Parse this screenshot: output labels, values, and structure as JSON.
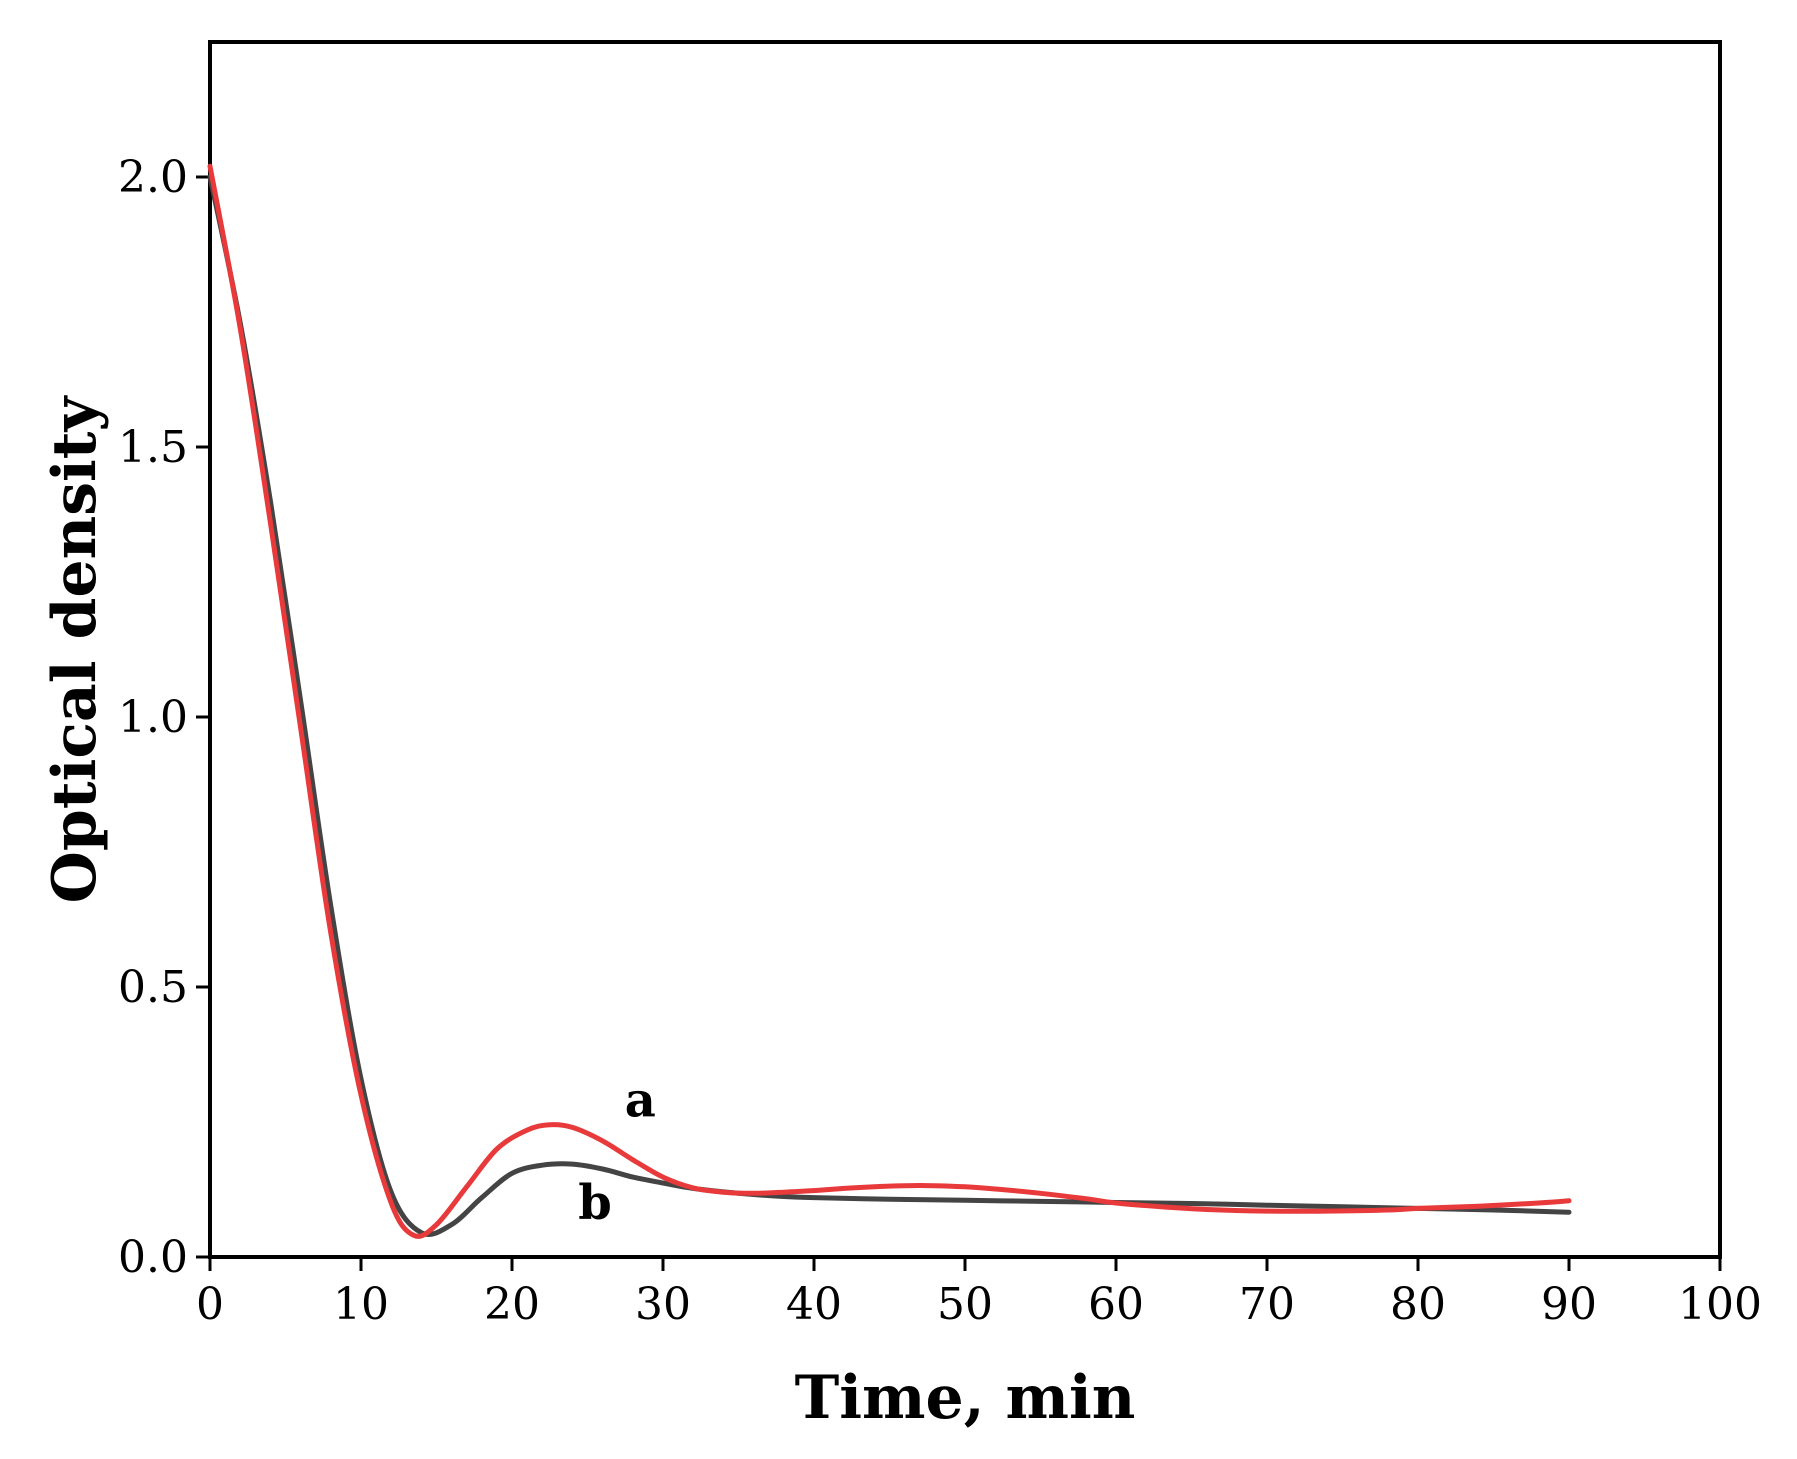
{
  "chart_data": {
    "type": "line",
    "title": "",
    "xlabel": "Time, min",
    "ylabel": "Optical density",
    "xlim": [
      0,
      100
    ],
    "ylim": [
      0,
      2.25
    ],
    "xticks": [
      0,
      10,
      20,
      30,
      40,
      50,
      60,
      70,
      80,
      90,
      100
    ],
    "xtick_labels": [
      "0",
      "10",
      "20",
      "30",
      "40",
      "50",
      "60",
      "70",
      "80",
      "90",
      "100"
    ],
    "yticks": [
      0,
      0.5,
      1.0,
      1.5,
      2.0
    ],
    "ytick_labels": [
      "0.0",
      "0.5",
      "1.0",
      "1.5",
      "2.0"
    ],
    "grid": false,
    "series": [
      {
        "name": "a",
        "color": "#e8393b",
        "x": [
          0,
          2,
          4,
          6,
          8,
          10,
          12,
          13.5,
          15,
          17,
          19,
          21,
          22.5,
          24,
          26,
          28,
          30,
          32,
          34,
          36,
          38,
          40,
          42,
          44,
          46,
          48,
          50,
          52,
          55,
          58,
          60,
          63,
          66,
          70,
          74,
          78,
          80,
          84,
          88,
          90
        ],
        "y": [
          2.02,
          1.72,
          1.36,
          0.98,
          0.6,
          0.3,
          0.1,
          0.04,
          0.06,
          0.13,
          0.2,
          0.235,
          0.245,
          0.24,
          0.215,
          0.18,
          0.148,
          0.128,
          0.12,
          0.118,
          0.12,
          0.123,
          0.127,
          0.13,
          0.132,
          0.132,
          0.13,
          0.126,
          0.118,
          0.108,
          0.1,
          0.093,
          0.088,
          0.085,
          0.085,
          0.087,
          0.09,
          0.094,
          0.1,
          0.104
        ]
      },
      {
        "name": "b",
        "color": "#444444",
        "x": [
          0,
          2,
          4,
          6,
          8,
          10,
          12,
          14,
          16,
          18,
          20,
          22,
          24,
          26,
          28,
          30,
          32,
          35,
          38,
          40,
          45,
          50,
          55,
          60,
          65,
          70,
          75,
          80,
          85,
          90
        ],
        "y": [
          2.0,
          1.73,
          1.4,
          1.03,
          0.65,
          0.33,
          0.12,
          0.045,
          0.06,
          0.11,
          0.155,
          0.17,
          0.172,
          0.163,
          0.148,
          0.137,
          0.127,
          0.118,
          0.112,
          0.11,
          0.107,
          0.105,
          0.103,
          0.101,
          0.099,
          0.096,
          0.093,
          0.09,
          0.087,
          0.083
        ]
      }
    ],
    "annotations": [
      {
        "text": "a",
        "x": 28.5,
        "y": 0.26
      },
      {
        "text": "b",
        "x": 25.5,
        "y": 0.07
      }
    ]
  }
}
